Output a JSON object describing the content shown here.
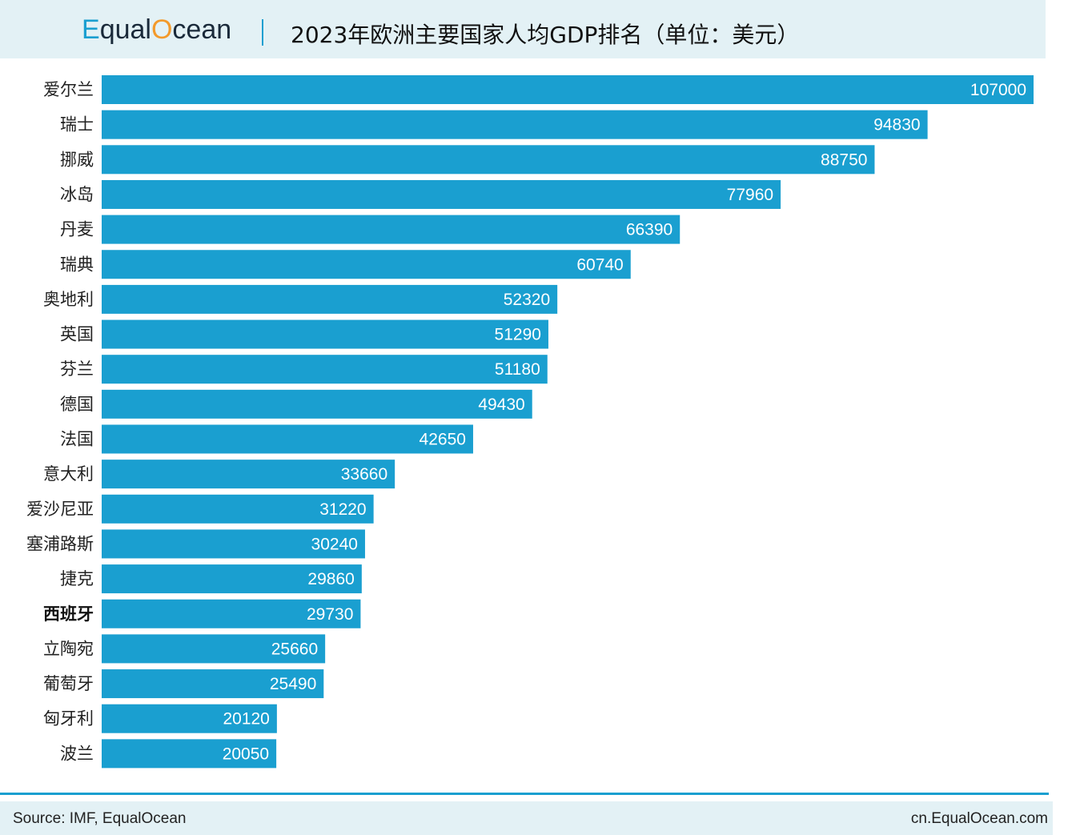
{
  "header": {
    "logo_e": "E",
    "logo_mid": "qual",
    "logo_o": "O",
    "logo_end": "cean",
    "title": "2023年欧洲主要国家人均GDP排名（单位：美元）"
  },
  "footer": {
    "source": "Source: IMF, EqualOcean",
    "site": "cn.EqualOcean.com"
  },
  "chart_data": {
    "type": "bar",
    "orientation": "horizontal",
    "title": "2023年欧洲主要国家人均GDP排名（单位：美元）",
    "categories": [
      "爱尔兰",
      "瑞士",
      "挪威",
      "冰岛",
      "丹麦",
      "瑞典",
      "奥地利",
      "英国",
      "芬兰",
      "德国",
      "法国",
      "意大利",
      "爱沙尼亚",
      "塞浦路斯",
      "捷克",
      "西班牙",
      "立陶宛",
      "葡萄牙",
      "匈牙利",
      "波兰"
    ],
    "values": [
      107000,
      94830,
      88750,
      77960,
      66390,
      60740,
      52320,
      51290,
      51180,
      49430,
      42650,
      33660,
      31220,
      30240,
      29860,
      29730,
      25660,
      25490,
      20120,
      20050
    ],
    "highlight": [
      "西班牙"
    ],
    "bar_color": "#1a9fd0",
    "value_label_color": "#ffffff",
    "xlim": [
      0,
      107000
    ],
    "grid": false,
    "legend": "none"
  }
}
